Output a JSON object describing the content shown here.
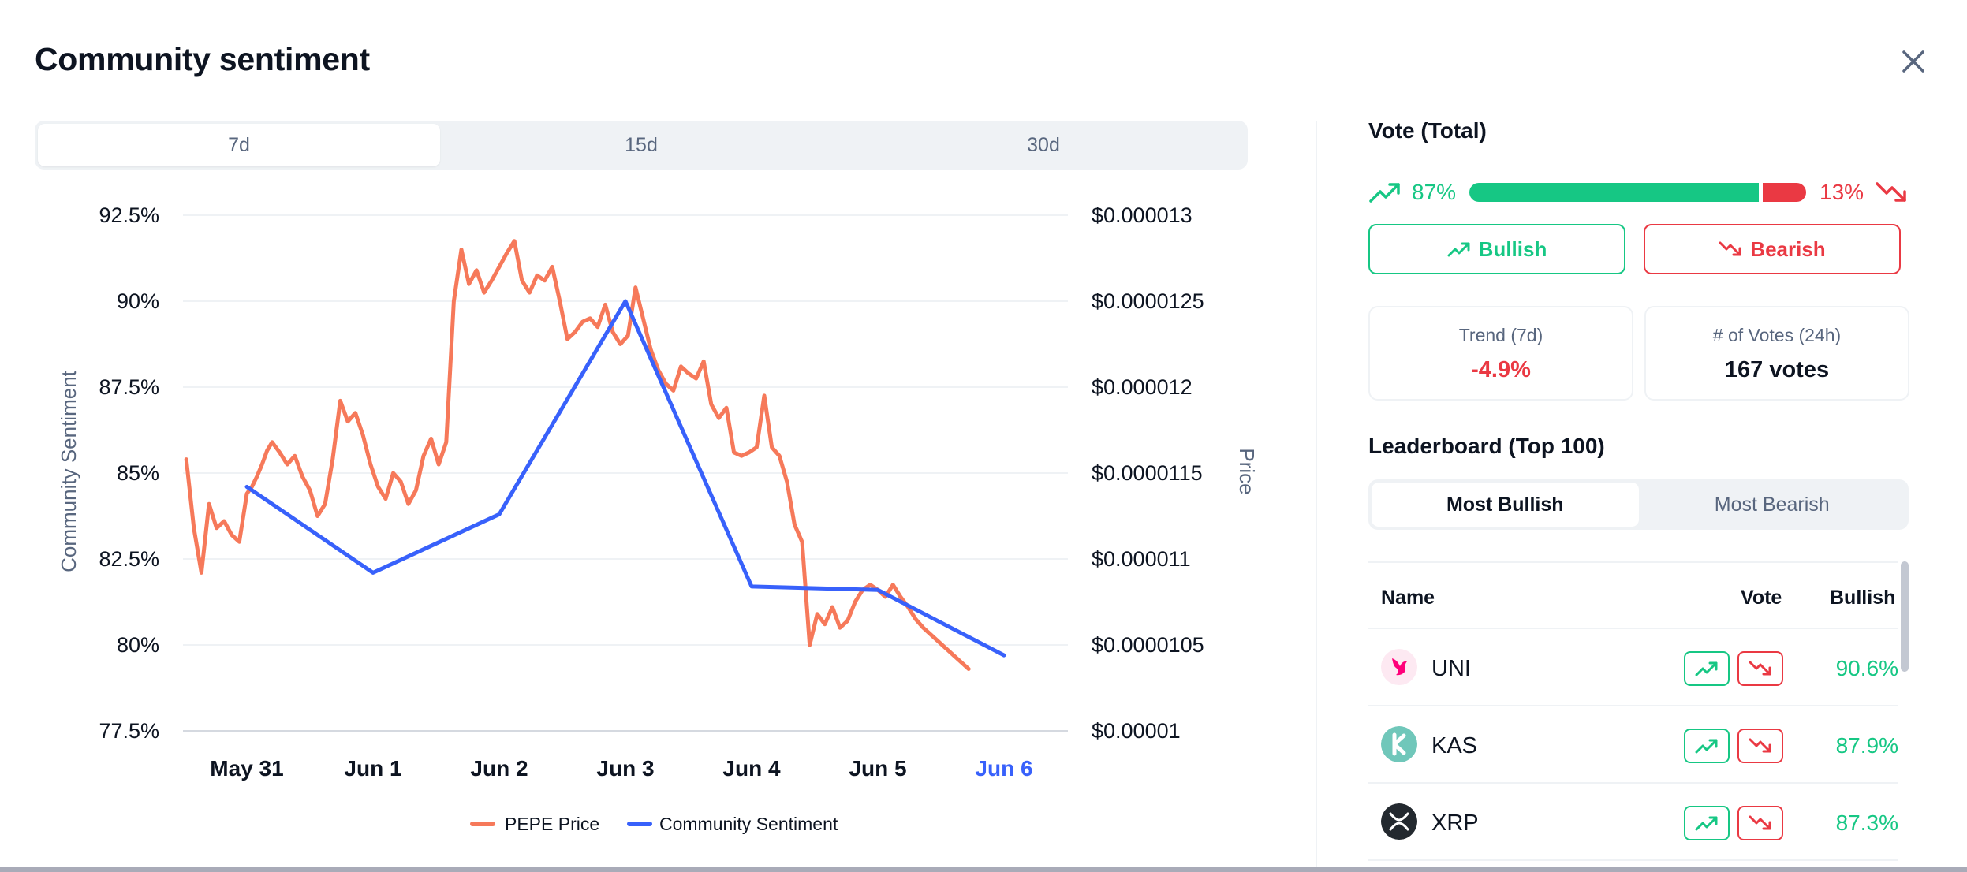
{
  "modal": {
    "title": "Community sentiment"
  },
  "range_tabs": [
    {
      "label": "7d",
      "active": true
    },
    {
      "label": "15d",
      "active": false
    },
    {
      "label": "30d",
      "active": false
    }
  ],
  "chart_data": {
    "type": "line",
    "x_categories": [
      "May 31",
      "Jun 1",
      "Jun 2",
      "Jun 3",
      "Jun 4",
      "Jun 5",
      "Jun 6"
    ],
    "x_highlight": "Jun 6",
    "ylabel_left": "Community Sentiment",
    "ylabel_right": "Price",
    "yticks_left": [
      "92.5%",
      "90%",
      "87.5%",
      "85%",
      "82.5%",
      "80%",
      "77.5%"
    ],
    "yticks_right": [
      "$0.000013",
      "$0.0000125",
      "$0.000012",
      "$0.0000115",
      "$0.000011",
      "$0.0000105",
      "$0.00001"
    ],
    "ylim_left": [
      77.5,
      92.5
    ],
    "ylim_right": [
      1e-05,
      1.3e-05
    ],
    "legend": [
      "PEPE Price",
      "Community Sentiment"
    ],
    "legend_position": "bottom",
    "series": [
      {
        "name": "Community Sentiment",
        "color": "#3861fb",
        "x": [
          0,
          1,
          2,
          3,
          4,
          5,
          6
        ],
        "values": [
          84.6,
          82.1,
          83.8,
          90.0,
          81.7,
          81.6,
          79.7
        ]
      },
      {
        "name": "PEPE Price",
        "color": "#f6795a",
        "x": [
          -0.48,
          -0.42,
          -0.36,
          -0.3,
          -0.24,
          -0.18,
          -0.12,
          -0.06,
          0.0,
          0.04,
          0.08,
          0.12,
          0.16,
          0.2,
          0.26,
          0.32,
          0.38,
          0.44,
          0.5,
          0.56,
          0.62,
          0.68,
          0.74,
          0.8,
          0.86,
          0.92,
          0.98,
          1.04,
          1.1,
          1.16,
          1.22,
          1.28,
          1.34,
          1.4,
          1.46,
          1.52,
          1.58,
          1.64,
          1.7,
          1.76,
          1.82,
          1.88,
          1.94,
          2.0,
          2.06,
          2.12,
          2.18,
          2.24,
          2.3,
          2.36,
          2.42,
          2.48,
          2.54,
          2.6,
          2.66,
          2.72,
          2.78,
          2.84,
          2.9,
          2.96,
          3.02,
          3.08,
          3.14,
          3.2,
          3.26,
          3.32,
          3.38,
          3.44,
          3.5,
          3.56,
          3.62,
          3.68,
          3.74,
          3.8,
          3.86,
          3.92,
          3.98,
          4.04,
          4.1,
          4.16,
          4.22,
          4.28,
          4.34,
          4.4,
          4.46,
          4.52,
          4.58,
          4.64,
          4.7,
          4.76,
          4.82,
          4.88,
          4.94,
          5.0,
          5.06,
          5.12,
          5.18,
          5.24,
          5.3,
          5.36,
          5.42,
          5.48,
          5.54,
          5.6,
          5.66,
          5.72
        ],
        "values": [
          1.158e-05,
          1.118e-05,
          1.092e-05,
          1.132e-05,
          1.118e-05,
          1.122e-05,
          1.114e-05,
          1.11e-05,
          1.138e-05,
          1.142e-05,
          1.148e-05,
          1.155e-05,
          1.163e-05,
          1.168e-05,
          1.162e-05,
          1.155e-05,
          1.16e-05,
          1.148e-05,
          1.14e-05,
          1.125e-05,
          1.132e-05,
          1.158e-05,
          1.192e-05,
          1.18e-05,
          1.185e-05,
          1.172e-05,
          1.155e-05,
          1.142e-05,
          1.135e-05,
          1.15e-05,
          1.145e-05,
          1.132e-05,
          1.14e-05,
          1.16e-05,
          1.17e-05,
          1.155e-05,
          1.168e-05,
          1.25e-05,
          1.28e-05,
          1.26e-05,
          1.268e-05,
          1.255e-05,
          1.262e-05,
          1.27e-05,
          1.278e-05,
          1.285e-05,
          1.262e-05,
          1.255e-05,
          1.265e-05,
          1.262e-05,
          1.27e-05,
          1.25e-05,
          1.228e-05,
          1.232e-05,
          1.238e-05,
          1.24e-05,
          1.235e-05,
          1.248e-05,
          1.232e-05,
          1.225e-05,
          1.23e-05,
          1.258e-05,
          1.24e-05,
          1.222e-05,
          1.21e-05,
          1.202e-05,
          1.198e-05,
          1.212e-05,
          1.208e-05,
          1.205e-05,
          1.215e-05,
          1.19e-05,
          1.182e-05,
          1.188e-05,
          1.162e-05,
          1.16e-05,
          1.162e-05,
          1.165e-05,
          1.195e-05,
          1.165e-05,
          1.16e-05,
          1.145e-05,
          1.12e-05,
          1.11e-05,
          1.05e-05,
          1.068e-05,
          1.062e-05,
          1.072e-05,
          1.06e-05,
          1.064e-05,
          1.075e-05,
          1.082e-05,
          1.085e-05,
          1.082e-05,
          1.078e-05,
          1.085e-05,
          1.078e-05,
          1.072e-05,
          1.065e-05,
          1.06e-05,
          1.056e-05,
          1.052e-05,
          1.048e-05,
          1.044e-05,
          1.04e-05,
          1.036e-05
        ]
      }
    ]
  },
  "vote_total": {
    "title": "Vote (Total)",
    "bullish_pct": "87%",
    "bearish_pct": "13%",
    "bullish_fraction": 0.87,
    "bullish_label": "Bullish",
    "bearish_label": "Bearish",
    "bull_color": "#16c784",
    "bear_color": "#ea3943"
  },
  "stats": {
    "trend_label": "Trend (7d)",
    "trend_value": "-4.9%",
    "votes_label": "# of Votes (24h)",
    "votes_value": "167 votes"
  },
  "leaderboard": {
    "title": "Leaderboard (Top 100)",
    "tabs": [
      {
        "label": "Most Bullish",
        "active": true
      },
      {
        "label": "Most Bearish",
        "active": false
      }
    ],
    "columns": {
      "name": "Name",
      "vote": "Vote",
      "bullish": "Bullish"
    },
    "rows": [
      {
        "symbol": "UNI",
        "bullish": "90.6%",
        "icon": "uniswap-logo-icon"
      },
      {
        "symbol": "KAS",
        "bullish": "87.9%",
        "icon": "kaspa-logo-icon"
      },
      {
        "symbol": "XRP",
        "bullish": "87.3%",
        "icon": "xrp-logo-icon"
      }
    ]
  }
}
